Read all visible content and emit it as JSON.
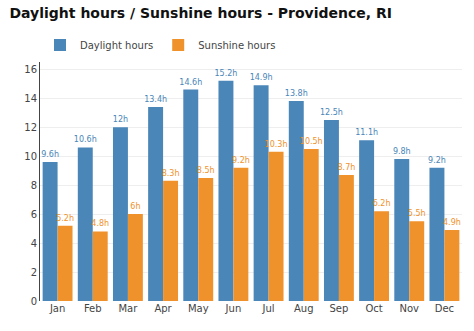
{
  "chart_data": {
    "type": "bar",
    "title": "Daylight hours / Sunshine hours - Providence, RI",
    "categories": [
      "Jan",
      "Feb",
      "Mar",
      "Apr",
      "May",
      "Jun",
      "Jul",
      "Aug",
      "Sep",
      "Oct",
      "Nov",
      "Dec"
    ],
    "series": [
      {
        "name": "Daylight hours",
        "color": "#4a86b8",
        "values": [
          9.6,
          10.6,
          12.0,
          13.4,
          14.6,
          15.2,
          14.9,
          13.8,
          12.5,
          11.1,
          9.8,
          9.2
        ],
        "value_labels": [
          "9.6h",
          "10.6h",
          "12h",
          "13.4h",
          "14.6h",
          "15.2h",
          "14.9h",
          "13.8h",
          "12.5h",
          "11.1h",
          "9.8h",
          "9.2h"
        ]
      },
      {
        "name": "Sunshine hours",
        "color": "#f0922b",
        "values": [
          5.2,
          4.8,
          6.0,
          8.3,
          8.5,
          9.2,
          10.3,
          10.5,
          8.7,
          6.2,
          5.5,
          4.9
        ],
        "value_labels": [
          "5.2h",
          "4.8h",
          "6h",
          "8.3h",
          "8.5h",
          "9.2h",
          "10.3h",
          "10.5h",
          "8.7h",
          "6.2h",
          "5.5h",
          "4.9h"
        ]
      }
    ],
    "ylim": [
      0,
      16.5
    ],
    "yticks": [
      0,
      2,
      4,
      6,
      8,
      10,
      12,
      14,
      16
    ],
    "grid": true,
    "legend": "upper left",
    "data_labels": true
  }
}
